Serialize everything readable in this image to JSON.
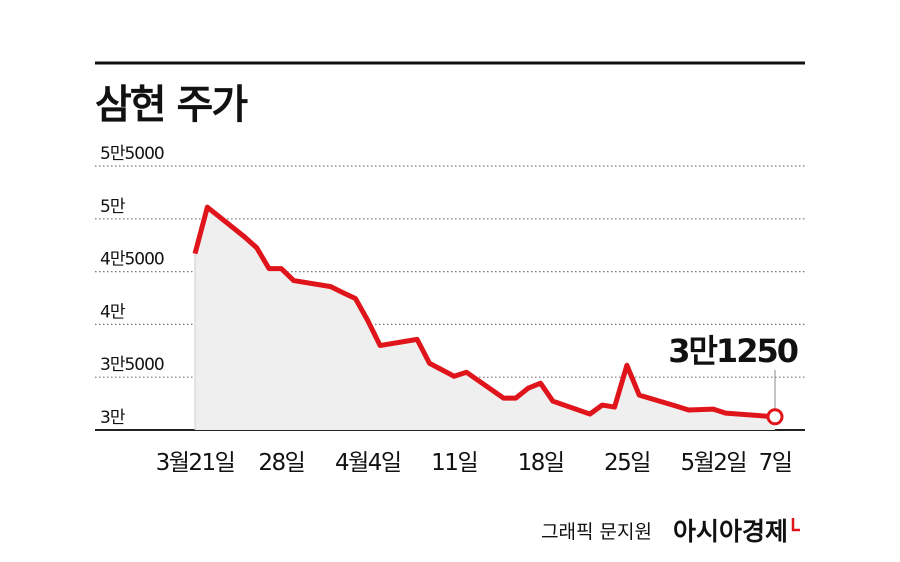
{
  "chart_data": {
    "type": "line",
    "title": "삼현 주가",
    "source": "그래픽 문지원",
    "brand": "아시아경제",
    "x": [
      "03-21",
      "03-22",
      "03-25",
      "03-26",
      "03-27",
      "03-28",
      "03-29",
      "04-01",
      "04-02",
      "04-03",
      "04-04",
      "04-05",
      "04-08",
      "04-09",
      "04-11",
      "04-12",
      "04-15",
      "04-16",
      "04-17",
      "04-18",
      "04-19",
      "04-22",
      "04-23",
      "04-24",
      "04-25",
      "04-26",
      "04-29",
      "04-30",
      "05-02",
      "05-03",
      "05-07"
    ],
    "series": [
      {
        "name": "삼현",
        "color": "#e0151b",
        "values": [
          46700,
          51100,
          48300,
          47260,
          45280,
          45280,
          44150,
          43580,
          43000,
          42450,
          40370,
          38000,
          38580,
          36320,
          35090,
          35470,
          33020,
          33020,
          33960,
          34430,
          32730,
          31510,
          32360,
          32170,
          36130,
          33300,
          32260,
          31890,
          31980,
          31600,
          31250
        ],
        "value_labels": [
          null,
          null,
          null,
          null,
          null,
          null,
          null,
          null,
          null,
          null,
          null,
          null,
          null,
          null,
          null,
          null,
          null,
          null,
          null,
          null,
          null,
          null,
          null,
          null,
          null,
          null,
          null,
          null,
          null,
          null,
          "3만1250"
        ]
      }
    ],
    "xlim": [
      "03-21",
      "05-07"
    ],
    "xticks": [
      {
        "value": "03-21",
        "label": "3월21일"
      },
      {
        "value": "03-28",
        "label": "28일"
      },
      {
        "value": "04-04",
        "label": "4월4일"
      },
      {
        "value": "04-11",
        "label": "11일"
      },
      {
        "value": "04-18",
        "label": "18일"
      },
      {
        "value": "04-25",
        "label": "25일"
      },
      {
        "value": "05-02",
        "label": "5월2일"
      },
      {
        "value": "05-07",
        "label": "7일"
      }
    ],
    "ylim": [
      30000,
      55000
    ],
    "yticks": [
      {
        "value": 30000,
        "label": "3만"
      },
      {
        "value": 35000,
        "label": "3만5000"
      },
      {
        "value": 40000,
        "label": "4만"
      },
      {
        "value": 45000,
        "label": "4만5000"
      },
      {
        "value": 50000,
        "label": "5만"
      },
      {
        "value": 55000,
        "label": "5만5000"
      }
    ],
    "grid": true
  }
}
